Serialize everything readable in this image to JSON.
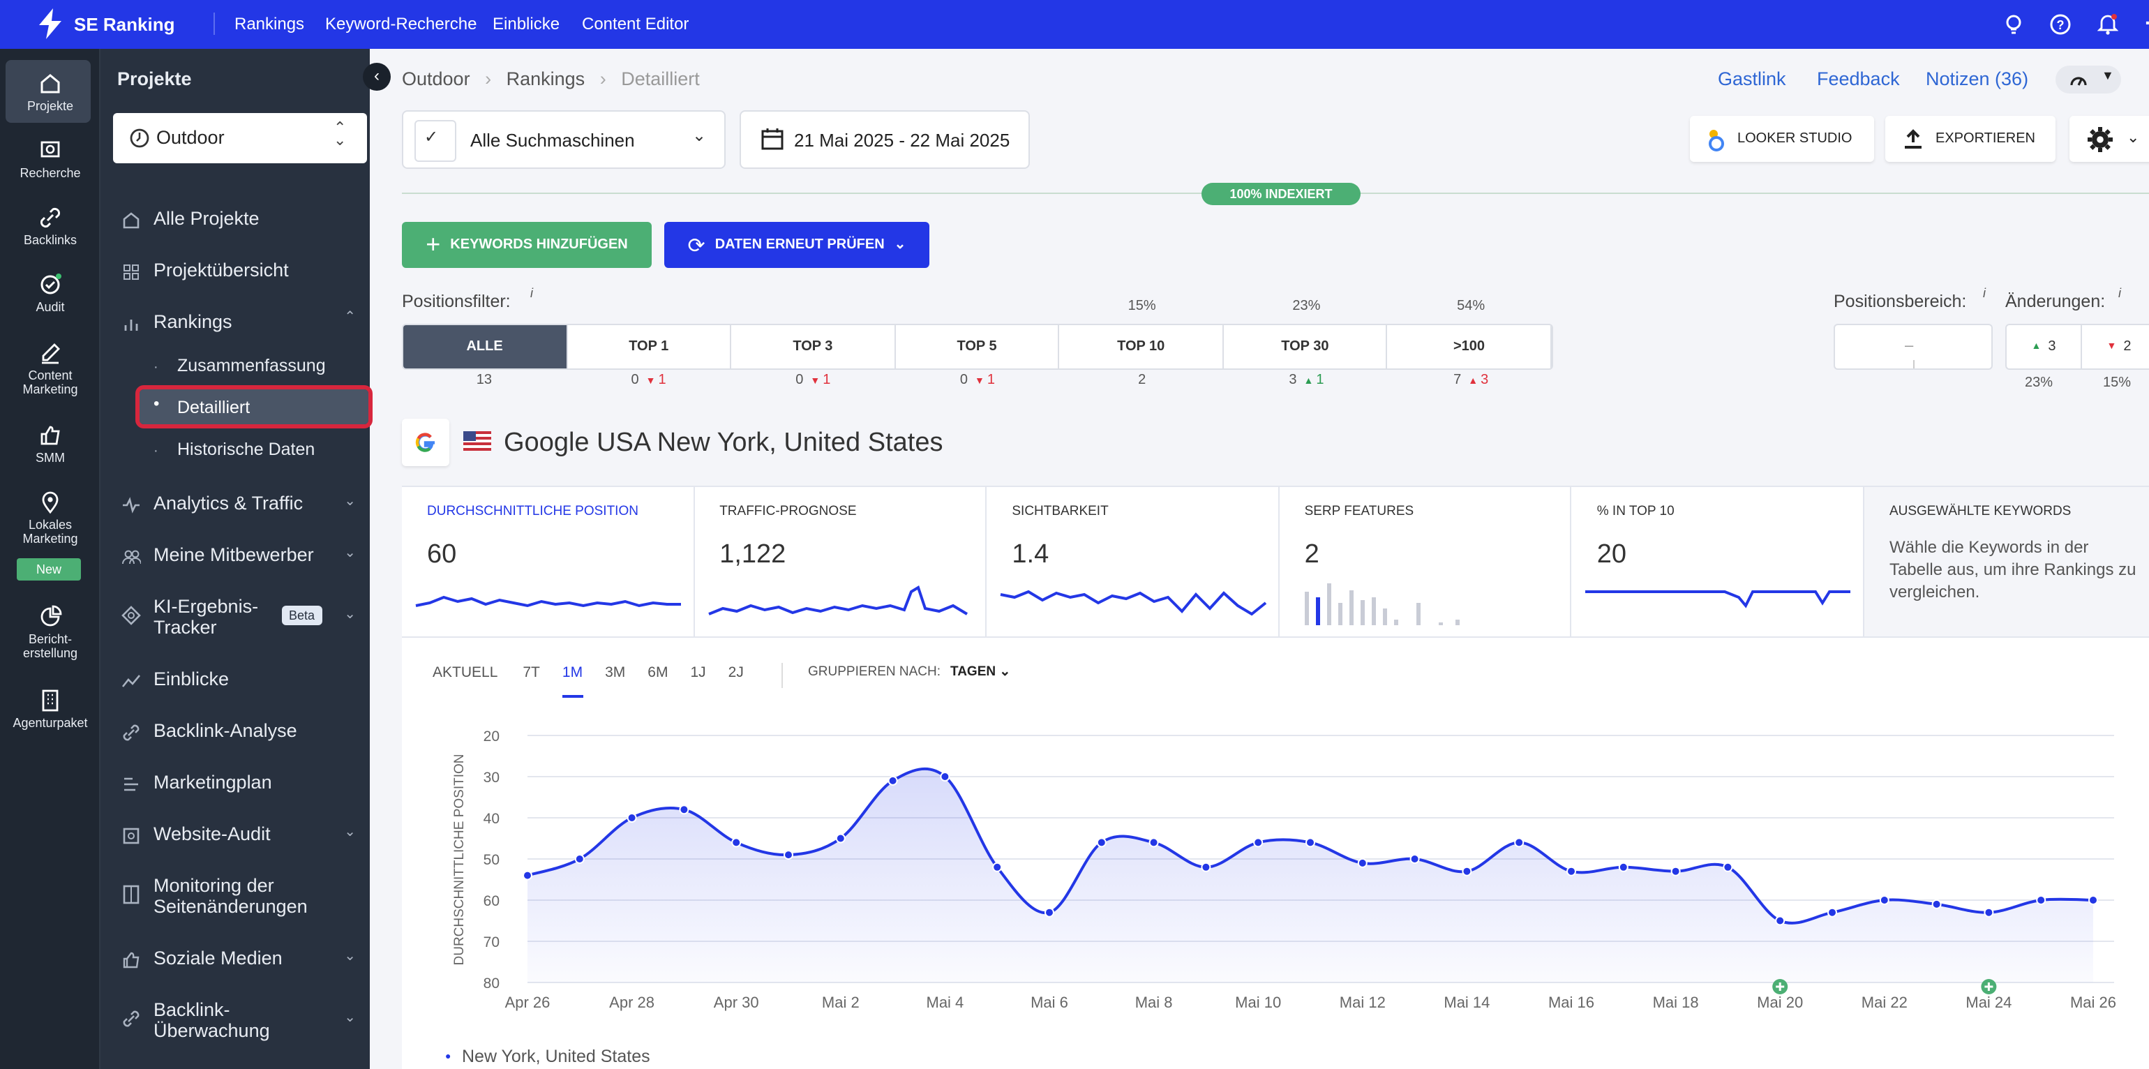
{
  "app": {
    "brand": "SE Ranking",
    "nav": [
      "Rankings",
      "Keyword-Recherche",
      "Einblicke",
      "Content Editor"
    ]
  },
  "rail": [
    {
      "label": "Projekte",
      "icon": "home-icon"
    },
    {
      "label": "Recherche",
      "icon": "search-icon"
    },
    {
      "label": "Backlinks",
      "icon": "link-icon"
    },
    {
      "label": "Audit",
      "icon": "check-circle-icon"
    },
    {
      "label": "Content Marketing",
      "icon": "edit-icon"
    },
    {
      "label": "SMM",
      "icon": "thumb-up-icon"
    },
    {
      "label": "Lokales Marketing",
      "icon": "map-pin-icon",
      "badge": "New"
    },
    {
      "label": "Bericht-erstellung",
      "icon": "report-icon"
    },
    {
      "label": "Agenturpaket",
      "icon": "building-icon"
    }
  ],
  "sidebar": {
    "title": "Projekte",
    "project": "Outdoor",
    "items": [
      {
        "label": "Alle Projekte"
      },
      {
        "label": "Projektübersicht"
      },
      {
        "label": "Rankings"
      },
      {
        "label": "Zusammenfassung"
      },
      {
        "label": "Detailliert"
      },
      {
        "label": "Historische Daten"
      },
      {
        "label": "Analytics & Traffic"
      },
      {
        "label": "Meine Mitbewerber"
      },
      {
        "label": "KI-Ergebnis-Tracker",
        "badge": "Beta"
      },
      {
        "label": "Einblicke"
      },
      {
        "label": "Backlink-Analyse"
      },
      {
        "label": "Marketingplan"
      },
      {
        "label": "Website-Audit"
      },
      {
        "label": "Monitoring der Seitenänderungen"
      },
      {
        "label": "Soziale Medien"
      },
      {
        "label": "Backlink-Überwachung"
      }
    ]
  },
  "header": {
    "breadcrumb": [
      "Outdoor",
      "Rankings",
      "Detailliert"
    ],
    "links": [
      "Gastlink",
      "Feedback",
      "Notizen (36)"
    ]
  },
  "toolbar": {
    "engine": "Alle Suchmaschinen",
    "date": "21 Mai 2025 - 22 Mai 2025",
    "looker": "LOOKER STUDIO",
    "export": "EXPORTIEREN",
    "indexed": "100% INDEXIERT",
    "add": "KEYWORDS HINZUFÜGEN",
    "recheck": "DATEN ERNEUT PRÜFEN"
  },
  "filter": {
    "label": "Positionsfilter:",
    "info": "i",
    "segments": [
      {
        "label": "ALLE",
        "pct": "",
        "count": "13",
        "d": ""
      },
      {
        "label": "TOP 1",
        "pct": "",
        "count": "0",
        "d": "1",
        "dir": "down"
      },
      {
        "label": "TOP 3",
        "pct": "",
        "count": "0",
        "d": "1",
        "dir": "down"
      },
      {
        "label": "TOP 5",
        "pct": "",
        "count": "0",
        "d": "1",
        "dir": "down"
      },
      {
        "label": "TOP 10",
        "pct": "15%",
        "count": "2",
        "d": ""
      },
      {
        "label": "TOP 30",
        "pct": "23%",
        "count": "3",
        "d": "1",
        "dir": "up"
      },
      {
        "label": ">100",
        "pct": "54%",
        "count": "7",
        "d": "3",
        "dir": "upred"
      }
    ],
    "range_label": "Positionsbereich:",
    "range_value": "–",
    "changes_label": "Änderungen:",
    "up": "3",
    "down": "2",
    "up_pct": "23%",
    "down_pct": "15%"
  },
  "engine_title": "Google USA New York, United States",
  "metrics": [
    {
      "title": "DURCHSCHNITTLICHE POSITION",
      "value": "60"
    },
    {
      "title": "TRAFFIC-PROGNOSE",
      "value": "1,122"
    },
    {
      "title": "SICHTBARKEIT",
      "value": "1.4"
    },
    {
      "title": "SERP FEATURES",
      "value": "2"
    },
    {
      "title": "% IN TOP 10",
      "value": "20"
    },
    {
      "title": "AUSGEWÄHLTE KEYWORDS",
      "value": "Wähle die Keywords in der Tabelle aus, um ihre Rankings zu vergleichen."
    }
  ],
  "periods": [
    "AKTUELL",
    "7T",
    "1M",
    "3M",
    "6M",
    "1J",
    "2J"
  ],
  "active_period": "1M",
  "group": {
    "label": "GRUPPIEREN NACH:",
    "value": "TAGEN"
  },
  "legend": "New York, United States",
  "colors": {
    "accent": "#2337e6",
    "sidebar": "#28313f",
    "green": "#4caf74",
    "red": "#e0313c"
  },
  "chart_data": {
    "type": "line",
    "ylabel": "DURCHSCHNITTLICHE POSITION",
    "ylim": [
      20,
      80
    ],
    "y_inverted": true,
    "yticks": [
      20,
      30,
      40,
      50,
      60,
      70,
      80
    ],
    "xticks": [
      "Apr 26",
      "Apr 28",
      "Apr 30",
      "Mai 2",
      "Mai 4",
      "Mai 6",
      "Mai 8",
      "Mai 10",
      "Mai 12",
      "Mai 14",
      "Mai 16",
      "Mai 18",
      "Mai 20",
      "Mai 22",
      "Mai 24",
      "Mai 26"
    ],
    "series": [
      {
        "name": "New York, United States",
        "values": [
          54,
          50,
          40,
          38,
          46,
          49,
          45,
          31,
          30,
          52,
          63,
          46,
          46,
          52,
          46,
          46,
          51,
          50,
          53,
          46,
          53,
          52,
          53,
          52,
          65,
          63,
          60,
          61,
          63,
          60,
          60
        ]
      }
    ]
  }
}
